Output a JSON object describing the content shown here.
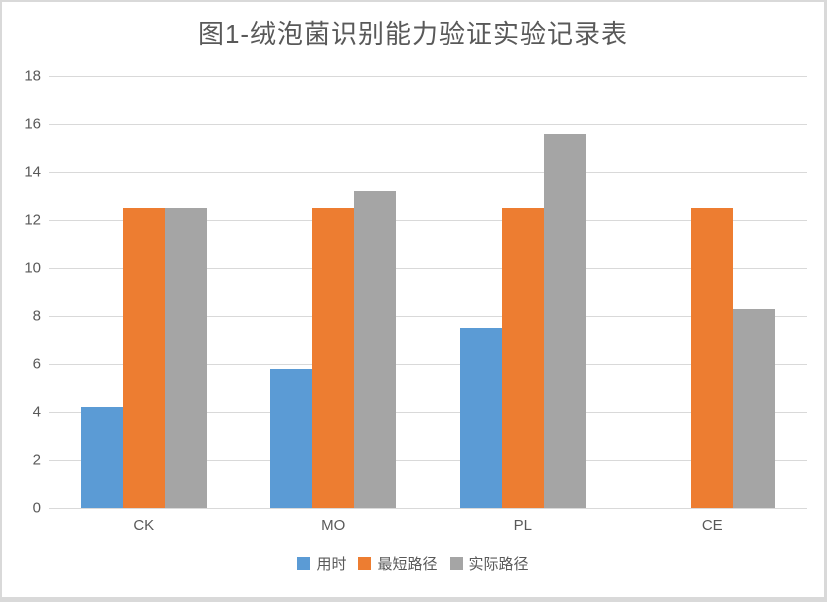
{
  "title": "图1-绒泡菌识别能力验证实验记录表",
  "chart_data": {
    "type": "bar",
    "title": "图1-绒泡菌识别能力验证实验记录表",
    "categories": [
      "CK",
      "MO",
      "PL",
      "CE"
    ],
    "series": [
      {
        "name": "用时",
        "color": "#5B9BD5",
        "values": [
          4.2,
          5.8,
          7.5,
          0
        ]
      },
      {
        "name": "最短路径",
        "color": "#ED7D31",
        "values": [
          12.5,
          12.5,
          12.5,
          12.5
        ]
      },
      {
        "name": "实际路径",
        "color": "#A5A5A5",
        "values": [
          12.5,
          13.2,
          15.6,
          8.3
        ]
      }
    ],
    "xlabel": "",
    "ylabel": "",
    "ylim": [
      0,
      18
    ],
    "ytick_step": 2,
    "grid": true,
    "legend_position": "bottom"
  },
  "colors": {
    "background": "#FFFFFF",
    "frame_border": "#D9D9D9",
    "gridline": "#D9D9D9",
    "axis_text": "#595959",
    "title_text": "#595959"
  }
}
